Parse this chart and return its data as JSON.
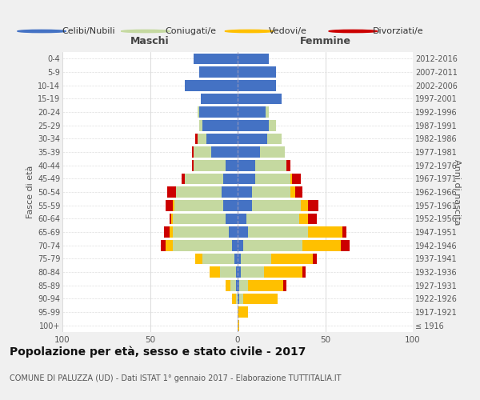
{
  "age_groups": [
    "100+",
    "95-99",
    "90-94",
    "85-89",
    "80-84",
    "75-79",
    "70-74",
    "65-69",
    "60-64",
    "55-59",
    "50-54",
    "45-49",
    "40-44",
    "35-39",
    "30-34",
    "25-29",
    "20-24",
    "15-19",
    "10-14",
    "5-9",
    "0-4"
  ],
  "birth_years": [
    "≤ 1916",
    "1917-1921",
    "1922-1926",
    "1927-1931",
    "1932-1936",
    "1937-1941",
    "1942-1946",
    "1947-1951",
    "1952-1956",
    "1957-1961",
    "1962-1966",
    "1967-1971",
    "1972-1976",
    "1977-1981",
    "1982-1986",
    "1987-1991",
    "1992-1996",
    "1997-2001",
    "2002-2006",
    "2007-2011",
    "2012-2016"
  ],
  "colors": {
    "celibi": "#4472C4",
    "coniugati": "#c5d9a0",
    "vedovi": "#ffc000",
    "divorziati": "#cc0000"
  },
  "maschi": {
    "celibi": [
      0,
      0,
      0,
      1,
      1,
      2,
      3,
      5,
      7,
      8,
      9,
      8,
      7,
      15,
      18,
      20,
      22,
      21,
      30,
      22,
      25
    ],
    "coniugati": [
      0,
      0,
      1,
      3,
      9,
      18,
      34,
      32,
      30,
      28,
      26,
      22,
      18,
      10,
      5,
      2,
      1,
      0,
      0,
      0,
      0
    ],
    "vedovi": [
      0,
      0,
      2,
      3,
      6,
      4,
      4,
      2,
      1,
      1,
      0,
      0,
      0,
      0,
      0,
      0,
      0,
      0,
      0,
      0,
      0
    ],
    "divorziati": [
      0,
      0,
      0,
      0,
      0,
      0,
      3,
      3,
      1,
      4,
      5,
      2,
      1,
      1,
      1,
      0,
      0,
      0,
      0,
      0,
      0
    ]
  },
  "femmine": {
    "celibi": [
      0,
      0,
      1,
      1,
      2,
      2,
      3,
      6,
      5,
      8,
      8,
      10,
      10,
      13,
      17,
      18,
      16,
      25,
      22,
      22,
      18
    ],
    "coniugati": [
      0,
      0,
      2,
      5,
      13,
      17,
      34,
      34,
      30,
      28,
      22,
      20,
      18,
      14,
      8,
      4,
      2,
      0,
      0,
      0,
      0
    ],
    "vedovi": [
      1,
      6,
      20,
      20,
      22,
      24,
      22,
      20,
      5,
      4,
      3,
      1,
      0,
      0,
      0,
      0,
      0,
      0,
      0,
      0,
      0
    ],
    "divorziati": [
      0,
      0,
      0,
      2,
      2,
      2,
      5,
      2,
      5,
      6,
      4,
      5,
      2,
      0,
      0,
      0,
      0,
      0,
      0,
      0,
      0
    ]
  },
  "xlim": 100,
  "title": "Popolazione per età, sesso e stato civile - 2017",
  "subtitle": "COMUNE DI PALUZZA (UD) - Dati ISTAT 1° gennaio 2017 - Elaborazione TUTTITALIA.IT",
  "ylabel_left": "Fasce di età",
  "ylabel_right": "Anni di nascita",
  "xlabel_left": "Maschi",
  "xlabel_right": "Femmine",
  "bg_color": "#f0f0f0",
  "plot_bg": "#ffffff"
}
